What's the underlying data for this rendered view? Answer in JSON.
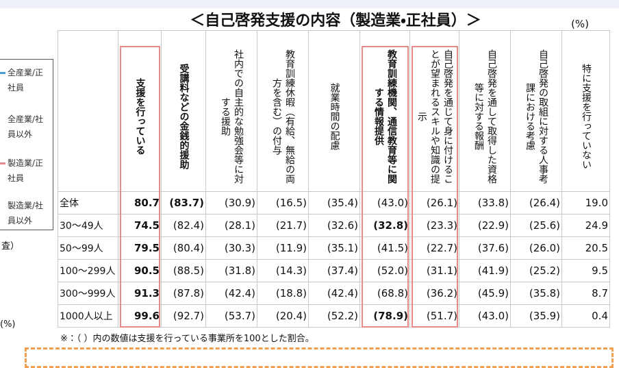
{
  "title": "＜自己啓発支援の内容（製造業・正社員）＞",
  "unit": "(%)",
  "legend": [
    {
      "text": "全産業/正社員",
      "color": "#4a9fd5"
    },
    {
      "text": "全産業/社員以外"
    },
    {
      "text": "製造業/正社員",
      "color": "#e88a95"
    },
    {
      "text": "製造業/社員以外"
    }
  ],
  "left_fragments": [
    "査）",
    "(%)"
  ],
  "table": {
    "highlight_columns": [
      0,
      5,
      6
    ],
    "highlight_color": "#e88a8a",
    "headers": [
      {
        "text": "支援を行っている",
        "bold": true
      },
      {
        "text": "受講料などの金銭的援助",
        "bold": true
      },
      {
        "text": "社内での自主的な勉強会等に対する援助"
      },
      {
        "text": "教育訓練休暇（有給、無給の両方を含む）の付与"
      },
      {
        "text": "就業時間の配慮"
      },
      {
        "text": "教育訓練機関、通信教育等に関する情報提供",
        "bold": true
      },
      {
        "text": "自己啓発を通じて身に付けることが望まれるスキルや知識の提示"
      },
      {
        "text": "自己啓発を通して取得した資格等に対する報酬"
      },
      {
        "text": "自己啓発の取組に対する人事考課における考慮"
      },
      {
        "text": "特に支援を行っていない"
      }
    ],
    "rows": [
      {
        "label": "全体",
        "cells": [
          {
            "text": "80.7",
            "bold": true
          },
          {
            "text": "(83.7)",
            "bold": true
          },
          {
            "text": "(30.9)"
          },
          {
            "text": "(16.5)"
          },
          {
            "text": "(35.4)"
          },
          {
            "text": "(43.0)"
          },
          {
            "text": "(26.1)"
          },
          {
            "text": "(33.8)"
          },
          {
            "text": "(26.4)"
          },
          {
            "text": "19.0"
          }
        ]
      },
      {
        "label": "30〜49人",
        "cells": [
          {
            "text": "74.5",
            "bold": true
          },
          {
            "text": "(82.4)"
          },
          {
            "text": "(28.1)"
          },
          {
            "text": "(21.7)"
          },
          {
            "text": "(32.6)"
          },
          {
            "text": "(32.8)",
            "bold": true
          },
          {
            "text": "(23.3)"
          },
          {
            "text": "(22.9)"
          },
          {
            "text": "(25.6)"
          },
          {
            "text": "24.9"
          }
        ]
      },
      {
        "label": "50〜99人",
        "cells": [
          {
            "text": "79.5",
            "bold": true
          },
          {
            "text": "(80.4)"
          },
          {
            "text": "(30.3)"
          },
          {
            "text": "(11.9)"
          },
          {
            "text": "(35.1)"
          },
          {
            "text": "(41.5)"
          },
          {
            "text": "(22.7)"
          },
          {
            "text": "(37.6)"
          },
          {
            "text": "(26.0)"
          },
          {
            "text": "20.5"
          }
        ]
      },
      {
        "label": "100〜299人",
        "cells": [
          {
            "text": "90.5",
            "bold": true
          },
          {
            "text": "(88.5)"
          },
          {
            "text": "(31.8)"
          },
          {
            "text": "(14.3)"
          },
          {
            "text": "(37.4)"
          },
          {
            "text": "(52.0)"
          },
          {
            "text": "(31.1)"
          },
          {
            "text": "(41.9)"
          },
          {
            "text": "(25.2)"
          },
          {
            "text": "9.5"
          }
        ]
      },
      {
        "label": "300〜999人",
        "cells": [
          {
            "text": "91.3",
            "bold": true
          },
          {
            "text": "(87.8)"
          },
          {
            "text": "(42.4)"
          },
          {
            "text": "(18.8)"
          },
          {
            "text": "(42.4)"
          },
          {
            "text": "(68.8)"
          },
          {
            "text": "(36.2)"
          },
          {
            "text": "(45.9)"
          },
          {
            "text": "(35.8)"
          },
          {
            "text": "8.7"
          }
        ]
      },
      {
        "label": "1000人以上",
        "cells": [
          {
            "text": "99.6",
            "bold": true
          },
          {
            "text": "(92.7)"
          },
          {
            "text": "(53.7)"
          },
          {
            "text": "(20.4)"
          },
          {
            "text": "(52.2)"
          },
          {
            "text": "(78.9)",
            "bold": true
          },
          {
            "text": "(51.7)"
          },
          {
            "text": "(43.0)"
          },
          {
            "text": "(35.9)"
          },
          {
            "text": "0.4"
          }
        ]
      }
    ]
  },
  "note": "※：（ ）内の数値は支援を行っている事業所を100とした割合。"
}
